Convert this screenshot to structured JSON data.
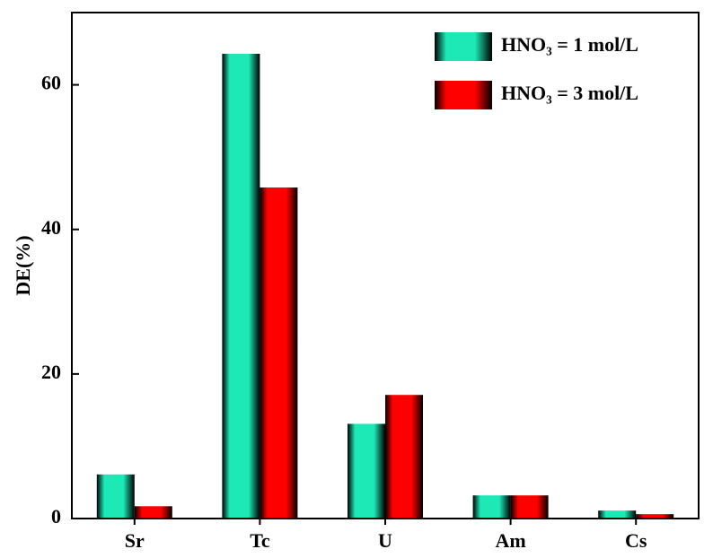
{
  "chart_data": {
    "type": "bar",
    "y_label": "DE(%)",
    "categories": [
      "Sr",
      "Tc",
      "U",
      "Am",
      "Cs"
    ],
    "series": [
      {
        "name": "HNO₃ = 1 mol/L",
        "color": "#1de9b6",
        "values": [
          6.1,
          64.3,
          13.1,
          3.2,
          1.1
        ]
      },
      {
        "name": "HNO₃ = 3 mol/L",
        "color": "#ff0000",
        "values": [
          1.7,
          45.8,
          17.1,
          3.2,
          0.6
        ]
      }
    ],
    "ylim": [
      0,
      70
    ],
    "yticks": [
      0,
      20,
      40,
      60
    ],
    "grid": false,
    "legend": "top-right"
  }
}
